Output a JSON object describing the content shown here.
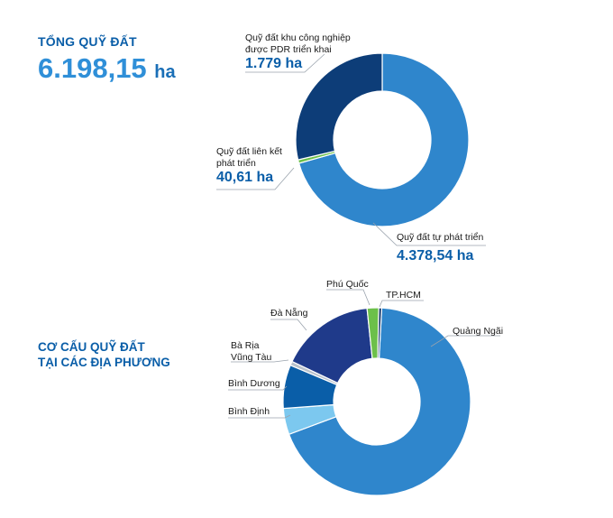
{
  "summary": {
    "total_title": "TỔNG QUỸ ĐẤT",
    "total_value": "6.198,15",
    "total_unit": "ha",
    "structure_title_line1": "CƠ CẤU QUỸ ĐẤT",
    "structure_title_line2": "TẠI CÁC ĐỊA PHƯƠNG"
  },
  "chart_data": [
    {
      "type": "pie",
      "variant": "donut",
      "title": "TỔNG QUỸ ĐẤT",
      "total": 6198.15,
      "unit": "ha",
      "slices": [
        {
          "name": "Quỹ đất tự phát triển",
          "value": 4378.54,
          "value_label": "4.378,54 ha",
          "color": "#2f86cc"
        },
        {
          "name": "Quỹ đất liên kết phát triển",
          "value": 40.61,
          "value_label": "40,61 ha",
          "color": "#6cc04a"
        },
        {
          "name": "Quỹ đất khu công nghiệp được PDR triển khai",
          "value": 1779,
          "value_label": "1.779 ha",
          "color": "#0d3d78"
        }
      ],
      "labels": {
        "industrial_line1": "Quỹ đất khu công nghiệp",
        "industrial_line2": "được PDR triển khai",
        "linked_line1": "Quỹ đất liên kết",
        "linked_line2": "phát triển",
        "self": "Quỹ đất tự phát triển"
      }
    },
    {
      "type": "pie",
      "variant": "donut",
      "title": "CƠ CẤU QUỸ ĐẤT TẠI CÁC ĐỊA PHƯƠNG",
      "unit": "%",
      "slices": [
        {
          "name": "Quảng Ngãi",
          "value": 68.5,
          "color": "#2f86cc"
        },
        {
          "name": "Bình Định",
          "value": 4.5,
          "color": "#7cc8ef"
        },
        {
          "name": "Bình Dương",
          "value": 7.5,
          "color": "#0a5ea8"
        },
        {
          "name": "Bà Rịa Vũng Tàu",
          "value": 0.7,
          "color": "#b9c2cc"
        },
        {
          "name": "Đà Nẵng",
          "value": 16.3,
          "color": "#1f3a8a"
        },
        {
          "name": "Phú Quốc",
          "value": 2.0,
          "color": "#6cc04a"
        },
        {
          "name": "TP.HCM",
          "value": 0.5,
          "color": "#0d2f66"
        }
      ],
      "labels": {
        "quang_ngai": "Quảng Ngãi",
        "binh_dinh": "Bình Định",
        "binh_duong": "Bình Dương",
        "brvt_line1": "Bà Rịa",
        "brvt_line2": "Vũng Tàu",
        "da_nang": "Đà Nẵng",
        "phu_quoc": "Phú Quốc",
        "tphcm": "TP.HCM"
      }
    }
  ]
}
